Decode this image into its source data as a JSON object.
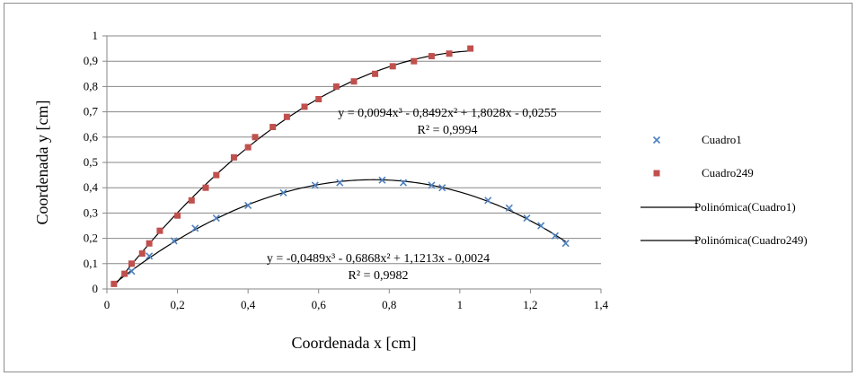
{
  "chart_data": {
    "type": "scatter",
    "title": "",
    "xlabel": "Coordenada x [cm]",
    "ylabel": "Coordenada y [cm]",
    "xlim": [
      0,
      1.4
    ],
    "ylim": [
      0,
      1
    ],
    "x_ticks": [
      0,
      0.2,
      0.4,
      0.6,
      0.8,
      1,
      1.2,
      1.4
    ],
    "x_tick_labels": [
      "0",
      "0,2",
      "0,4",
      "0,6",
      "0,8",
      "1",
      "1,2",
      "1,4"
    ],
    "y_ticks": [
      0,
      0.1,
      0.2,
      0.3,
      0.4,
      0.5,
      0.6,
      0.7,
      0.8,
      0.9,
      1
    ],
    "y_tick_labels": [
      "0",
      "0,1",
      "0,2",
      "0,3",
      "0,4",
      "0,5",
      "0,6",
      "0,7",
      "0,8",
      "0,9",
      "1"
    ],
    "grid": "horizontal major gridlines",
    "legend_position": "right",
    "series": [
      {
        "name": "Cuadro1",
        "marker": "x",
        "color": "#4f81bd",
        "x": [
          0.07,
          0.12,
          0.19,
          0.25,
          0.31,
          0.4,
          0.5,
          0.59,
          0.66,
          0.78,
          0.84,
          0.92,
          0.95,
          1.08,
          1.14,
          1.19,
          1.23,
          1.27,
          1.3
        ],
        "y": [
          0.07,
          0.13,
          0.19,
          0.24,
          0.28,
          0.33,
          0.38,
          0.41,
          0.42,
          0.43,
          0.42,
          0.41,
          0.4,
          0.35,
          0.32,
          0.28,
          0.25,
          0.21,
          0.18
        ]
      },
      {
        "name": "Cuadro249",
        "marker": "square",
        "color": "#c0504d",
        "x": [
          0.02,
          0.05,
          0.07,
          0.1,
          0.12,
          0.15,
          0.2,
          0.24,
          0.28,
          0.31,
          0.36,
          0.4,
          0.42,
          0.47,
          0.51,
          0.56,
          0.6,
          0.65,
          0.7,
          0.76,
          0.81,
          0.87,
          0.92,
          0.97,
          1.03
        ],
        "y": [
          0.02,
          0.06,
          0.1,
          0.14,
          0.18,
          0.23,
          0.29,
          0.35,
          0.4,
          0.45,
          0.52,
          0.56,
          0.6,
          0.64,
          0.68,
          0.72,
          0.75,
          0.8,
          0.82,
          0.85,
          0.88,
          0.9,
          0.92,
          0.93,
          0.95
        ]
      }
    ],
    "trendlines": [
      {
        "name": "Polinómica(Cuadro1)",
        "color": "#000000",
        "coefficients": [
          -0.0489,
          -0.6868,
          1.1213,
          -0.0024
        ],
        "x_range": [
          0.02,
          1.3
        ],
        "equation": "y = -0,0489x³ - 0,6868x² + 1,1213x - 0,0024",
        "r2": "R² = 0,9982"
      },
      {
        "name": "Polinómica(Cuadro249)",
        "color": "#000000",
        "coefficients": [
          0.0094,
          -0.8492,
          1.8028,
          -0.0255
        ],
        "x_range": [
          0.02,
          1.03
        ],
        "equation": "y = 0,0094x³ - 0,8492x² + 1,8028x - 0,0255",
        "r2": "R² = 0,9994"
      }
    ]
  }
}
